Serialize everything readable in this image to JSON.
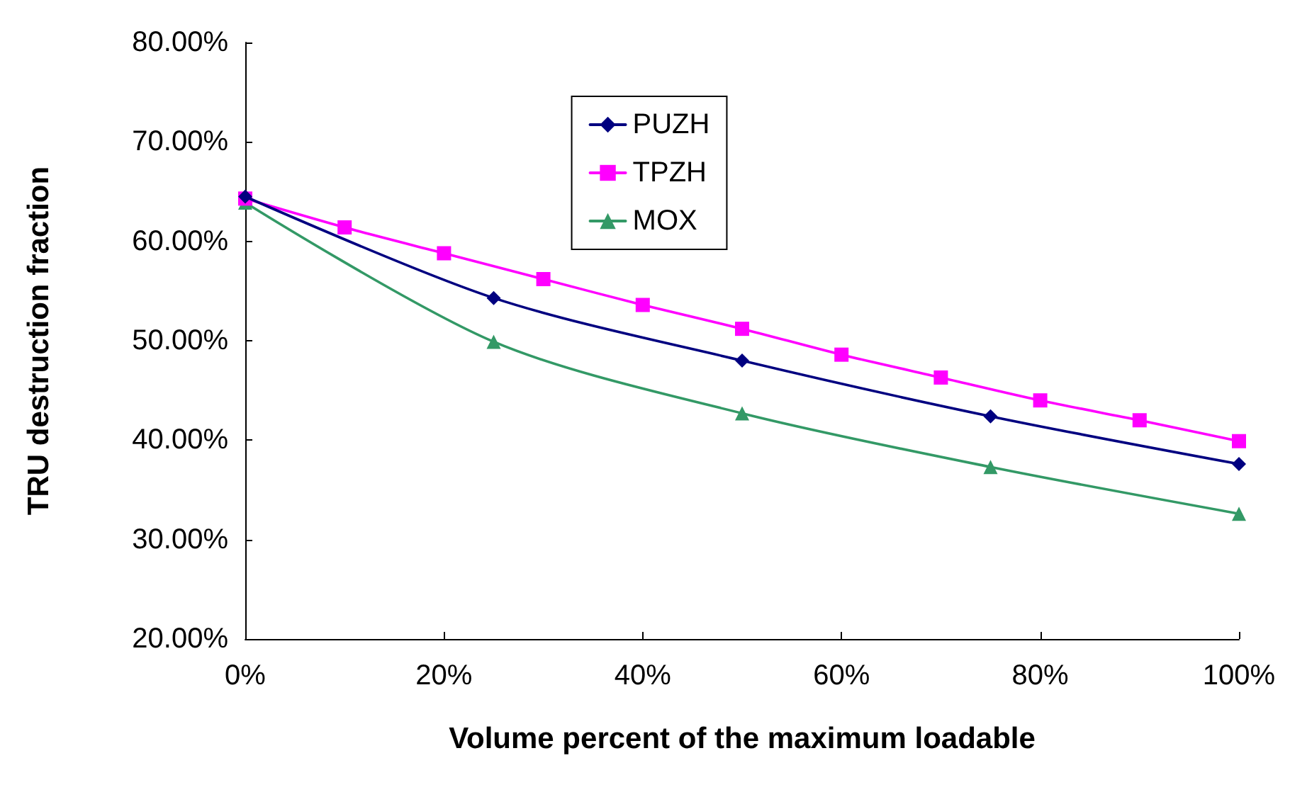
{
  "chart_data": {
    "type": "line",
    "xlabel": "Volume percent of the maximum loadable",
    "ylabel": "TRU destruction fraction",
    "xlim": [
      0,
      100
    ],
    "xticks": [
      {
        "value": 0,
        "label": "0%"
      },
      {
        "value": 20,
        "label": "20%"
      },
      {
        "value": 40,
        "label": "40%"
      },
      {
        "value": 60,
        "label": "60%"
      },
      {
        "value": 80,
        "label": "80%"
      },
      {
        "value": 100,
        "label": "100%"
      }
    ],
    "ylim": [
      20,
      80
    ],
    "yticks": [
      {
        "value": 20,
        "label": "20.00%"
      },
      {
        "value": 30,
        "label": "30.00%"
      },
      {
        "value": 40,
        "label": "40.00%"
      },
      {
        "value": 50,
        "label": "50.00%"
      },
      {
        "value": 60,
        "label": "60.00%"
      },
      {
        "value": 70,
        "label": "70.00%"
      },
      {
        "value": 80,
        "label": "80.00%"
      }
    ],
    "grid": false,
    "legend": "top",
    "line_style": "solid",
    "series": [
      {
        "name": "PUZH",
        "color": "#000080",
        "marker": "diamond",
        "x": [
          0,
          25,
          50,
          75,
          100
        ],
        "values": [
          64.5,
          54.3,
          48.0,
          42.4,
          37.6
        ]
      },
      {
        "name": "TPZH",
        "color": "#ff00ff",
        "marker": "square",
        "x": [
          0,
          10,
          20,
          30,
          40,
          50,
          60,
          70,
          80,
          90,
          100
        ],
        "values": [
          64.3,
          61.4,
          58.8,
          56.2,
          53.6,
          51.2,
          48.6,
          46.3,
          44.0,
          42.0,
          39.9
        ]
      },
      {
        "name": "MOX",
        "color": "#339966",
        "marker": "triangle",
        "x": [
          0,
          25,
          50,
          75,
          100
        ],
        "values": [
          63.9,
          49.9,
          42.7,
          37.3,
          32.6
        ]
      }
    ]
  }
}
